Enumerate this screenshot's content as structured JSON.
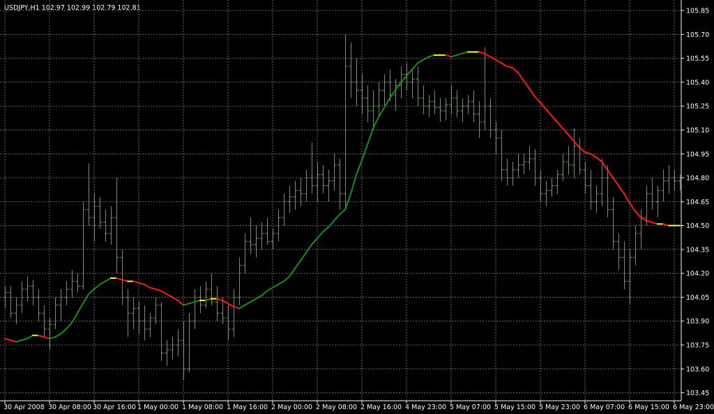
{
  "chart_data": {
    "type": "ohlc",
    "title": "USDJPY,H1  102.97 102.99 102.79 102.81",
    "bar_color": "#3dbb2a",
    "grid": true,
    "ylim": [
      103.4,
      105.916
    ],
    "yticks": [
      105.85,
      {
        "value": 105.7,
        "label": "105.70"
      },
      105.55,
      {
        "value": 105.4,
        "label": "105.40"
      },
      105.25,
      {
        "value": 105.1,
        "label": "105.10"
      },
      104.95,
      {
        "value": 104.8,
        "label": "104.80"
      },
      104.65,
      {
        "value": 104.5,
        "label": "104.50"
      },
      104.35,
      {
        "value": 104.2,
        "label": "104.20"
      },
      104.05,
      {
        "value": 103.9,
        "label": "103.90"
      },
      103.75,
      {
        "value": 103.6,
        "label": "103.60"
      },
      103.45
    ],
    "categories": [
      "30 Apr 2008",
      null,
      null,
      null,
      null,
      null,
      null,
      null,
      "30 Apr 08:00",
      null,
      null,
      null,
      null,
      null,
      null,
      null,
      "30 Apr 16:00",
      null,
      null,
      null,
      null,
      null,
      null,
      null,
      "1 May 00:00",
      null,
      null,
      null,
      null,
      null,
      null,
      null,
      "1 May 08:00",
      null,
      null,
      null,
      null,
      null,
      null,
      null,
      "1 May 16:00",
      null,
      null,
      null,
      null,
      null,
      null,
      null,
      "2 May 00:00",
      null,
      null,
      null,
      null,
      null,
      null,
      null,
      "2 May 08:00",
      null,
      null,
      null,
      null,
      null,
      null,
      null,
      "2 May 16:00",
      null,
      null,
      null,
      null,
      null,
      null,
      null,
      "4 May 23:00",
      null,
      null,
      null,
      null,
      null,
      null,
      null,
      "5 May 07:00",
      null,
      null,
      null,
      null,
      null,
      null,
      null,
      "5 May 15:00",
      null,
      null,
      null,
      null,
      null,
      null,
      null,
      "5 May 23:00",
      null,
      null,
      null,
      null,
      null,
      null,
      null,
      "6 May 07:00",
      null,
      null,
      null,
      null,
      null,
      null,
      null,
      "6 May 15:00",
      null,
      null,
      null,
      null,
      null,
      null,
      null,
      "6 May 23:00",
      null
    ],
    "open": [
      104.05,
      104.08,
      103.95,
      104.0,
      104.1,
      104.12,
      104.05,
      103.95,
      103.85,
      103.88,
      104.0,
      104.05,
      104.1,
      104.15,
      104.12,
      104.6,
      104.55,
      104.62,
      104.52,
      104.45,
      104.55,
      104.3,
      104.05,
      103.95,
      103.98,
      103.9,
      103.85,
      103.92,
      104.0,
      103.7,
      103.72,
      103.75,
      103.78,
      103.6,
      103.9,
      104.05,
      104.0,
      104.1,
      104.02,
      103.95,
      103.92,
      103.85,
      104.05,
      104.25,
      104.4,
      104.38,
      104.42,
      104.45,
      104.4,
      104.45,
      104.55,
      104.65,
      104.68,
      104.72,
      104.7,
      104.8,
      104.75,
      104.82,
      104.75,
      104.78,
      104.88,
      104.7,
      105.5,
      105.4,
      105.35,
      105.3,
      105.22,
      105.25,
      105.35,
      105.4,
      105.32,
      105.38,
      105.45,
      105.4,
      105.42,
      105.3,
      105.25,
      105.28,
      105.24,
      105.22,
      105.26,
      105.3,
      105.22,
      105.25,
      105.28,
      105.2,
      105.15,
      105.25,
      105.1,
      105.05,
      104.85,
      104.8,
      104.85,
      104.88,
      104.9,
      104.92,
      104.8,
      104.7,
      104.72,
      104.75,
      104.82,
      104.9,
      104.88,
      105.0,
      104.85,
      104.75,
      104.65,
      104.7,
      104.8,
      104.6,
      104.4,
      104.3,
      104.15,
      104.3,
      104.45,
      104.55,
      104.7,
      104.65,
      104.72,
      104.78,
      104.8,
      104.78
    ],
    "high": [
      104.12,
      104.12,
      104.05,
      104.15,
      104.18,
      104.16,
      104.1,
      104.0,
      103.92,
      104.05,
      104.1,
      104.15,
      104.22,
      104.2,
      104.65,
      104.89,
      104.7,
      104.68,
      104.6,
      104.62,
      104.8,
      104.35,
      104.1,
      104.05,
      104.02,
      104.0,
      103.95,
      104.05,
      104.02,
      103.78,
      103.8,
      103.85,
      103.9,
      103.95,
      104.1,
      104.12,
      104.15,
      104.2,
      104.12,
      104.05,
      104.0,
      104.1,
      104.3,
      104.45,
      104.55,
      104.5,
      104.52,
      104.55,
      104.48,
      104.6,
      104.7,
      104.75,
      104.78,
      104.8,
      104.85,
      105.02,
      104.9,
      104.88,
      104.85,
      104.95,
      104.92,
      105.7,
      105.65,
      105.55,
      105.45,
      105.38,
      105.35,
      105.4,
      105.45,
      105.48,
      105.42,
      105.5,
      105.52,
      105.48,
      105.5,
      105.38,
      105.32,
      105.35,
      105.3,
      105.3,
      105.38,
      105.35,
      105.3,
      105.32,
      105.35,
      105.28,
      105.62,
      105.3,
      105.15,
      105.1,
      104.92,
      104.9,
      104.95,
      104.95,
      105.0,
      104.98,
      104.85,
      104.78,
      104.8,
      104.85,
      104.95,
      105.0,
      105.11,
      105.05,
      104.9,
      104.85,
      104.75,
      104.92,
      104.88,
      104.68,
      104.45,
      104.4,
      104.35,
      104.5,
      104.6,
      104.75,
      104.8,
      104.75,
      104.85,
      104.88,
      104.85,
      104.82
    ],
    "low": [
      103.98,
      103.92,
      103.88,
      103.95,
      104.02,
      104.0,
      103.9,
      103.8,
      103.72,
      103.85,
      103.9,
      104.0,
      104.05,
      104.08,
      104.1,
      104.5,
      104.4,
      104.48,
      104.4,
      104.38,
      104.2,
      104.0,
      103.8,
      103.85,
      103.82,
      103.78,
      103.8,
      103.88,
      103.65,
      103.62,
      103.66,
      103.68,
      103.53,
      103.58,
      103.85,
      103.95,
      103.98,
      104.0,
      103.9,
      103.88,
      103.78,
      103.8,
      104.0,
      104.2,
      104.32,
      104.3,
      104.35,
      104.38,
      104.35,
      104.4,
      104.5,
      104.58,
      104.6,
      104.62,
      104.65,
      104.7,
      104.65,
      104.7,
      104.65,
      104.72,
      104.6,
      104.62,
      105.3,
      105.25,
      105.2,
      105.15,
      105.1,
      105.18,
      105.25,
      105.28,
      105.22,
      105.3,
      105.35,
      105.3,
      105.25,
      105.2,
      105.18,
      105.2,
      105.15,
      105.16,
      105.2,
      105.18,
      105.15,
      105.2,
      105.15,
      105.05,
      105.1,
      105.05,
      104.95,
      104.78,
      104.75,
      104.75,
      104.8,
      104.82,
      104.85,
      104.75,
      104.65,
      104.62,
      104.68,
      104.7,
      104.78,
      104.82,
      104.8,
      104.82,
      104.7,
      104.6,
      104.58,
      104.62,
      104.55,
      104.35,
      104.22,
      104.1,
      104.01,
      104.25,
      104.35,
      104.5,
      104.6,
      104.55,
      104.65,
      104.7,
      104.72,
      104.72
    ],
    "close": [
      104.08,
      103.95,
      104.0,
      104.1,
      104.12,
      104.05,
      103.95,
      103.85,
      103.88,
      104.0,
      104.05,
      104.1,
      104.15,
      104.12,
      104.6,
      104.55,
      104.62,
      104.52,
      104.45,
      104.55,
      104.3,
      104.05,
      103.95,
      103.98,
      103.9,
      103.85,
      103.92,
      104.0,
      103.7,
      103.72,
      103.75,
      103.78,
      103.6,
      103.9,
      104.05,
      104.0,
      104.1,
      104.02,
      103.95,
      103.92,
      103.85,
      104.05,
      104.25,
      104.4,
      104.38,
      104.42,
      104.45,
      104.4,
      104.45,
      104.55,
      104.65,
      104.68,
      104.72,
      104.7,
      104.8,
      104.75,
      104.82,
      104.75,
      104.78,
      104.88,
      104.7,
      105.5,
      105.4,
      105.35,
      105.3,
      105.22,
      105.25,
      105.35,
      105.4,
      105.32,
      105.38,
      105.45,
      105.4,
      105.42,
      105.3,
      105.25,
      105.28,
      105.24,
      105.22,
      105.26,
      105.3,
      105.22,
      105.25,
      105.28,
      105.2,
      105.15,
      105.25,
      105.1,
      105.05,
      104.85,
      104.8,
      104.85,
      104.88,
      104.9,
      104.92,
      104.8,
      104.7,
      104.72,
      104.75,
      104.82,
      104.9,
      104.88,
      105.0,
      104.85,
      104.75,
      104.65,
      104.7,
      104.8,
      104.6,
      104.4,
      104.3,
      104.15,
      104.3,
      104.45,
      104.55,
      104.7,
      104.65,
      104.72,
      104.78,
      104.8,
      104.78,
      104.75
    ],
    "ma": {
      "up_color": "#1a8f1a",
      "down_color": "#ff1a1a",
      "flat_color": "#ffff33",
      "values": [
        103.79,
        103.78,
        103.77,
        103.78,
        103.79,
        103.81,
        103.81,
        103.8,
        103.79,
        103.8,
        103.82,
        103.85,
        103.89,
        103.95,
        104.01,
        104.07,
        104.1,
        104.13,
        104.15,
        104.17,
        104.17,
        104.16,
        104.15,
        104.15,
        104.14,
        104.13,
        104.11,
        104.1,
        104.09,
        104.07,
        104.05,
        104.03,
        104.0,
        104.01,
        104.02,
        104.03,
        104.03,
        104.04,
        104.04,
        104.03,
        104.01,
        103.99,
        103.98,
        104.0,
        104.02,
        104.04,
        104.06,
        104.09,
        104.11,
        104.13,
        104.15,
        104.18,
        104.23,
        104.28,
        104.33,
        104.38,
        104.42,
        104.46,
        104.49,
        104.53,
        104.57,
        104.6,
        104.7,
        104.82,
        104.91,
        105.01,
        105.11,
        105.18,
        105.24,
        105.3,
        105.35,
        105.4,
        105.44,
        105.48,
        105.52,
        105.54,
        105.56,
        105.57,
        105.57,
        105.57,
        105.56,
        105.57,
        105.58,
        105.59,
        105.59,
        105.59,
        105.58,
        105.56,
        105.54,
        105.52,
        105.5,
        105.49,
        105.46,
        105.41,
        105.36,
        105.31,
        105.27,
        105.23,
        105.19,
        105.15,
        105.11,
        105.07,
        105.03,
        104.99,
        104.96,
        104.95,
        104.93,
        104.9,
        104.85,
        104.8,
        104.75,
        104.7,
        104.64,
        104.59,
        104.55,
        104.53,
        104.52,
        104.51,
        104.51,
        104.5,
        104.5,
        104.5
      ]
    }
  }
}
